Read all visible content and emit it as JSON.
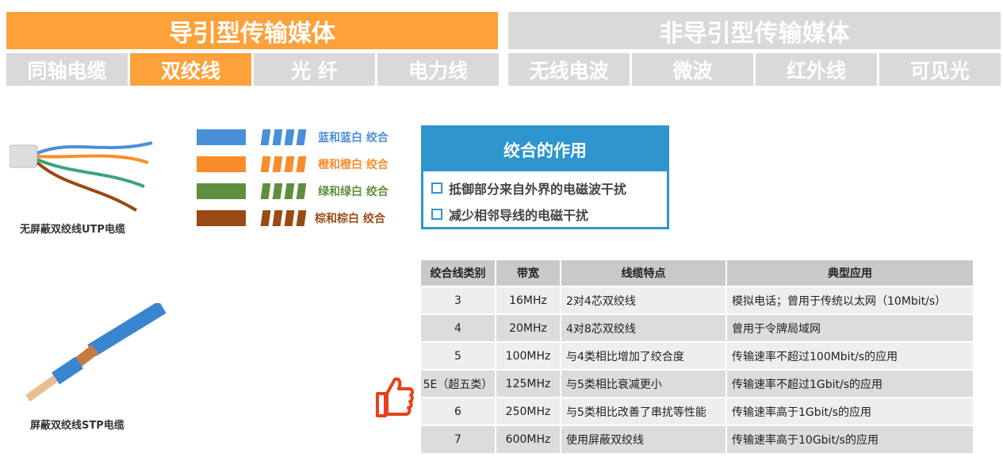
{
  "header": {
    "guided": {
      "title": "导引型传输媒体",
      "tabs": [
        "同轴电缆",
        "双绞线",
        "光 纤",
        "电力线"
      ],
      "active": 1
    },
    "unguided": {
      "title": "非导引型传输媒体",
      "tabs": [
        "无线电波",
        "微波",
        "红外线",
        "可见光"
      ]
    }
  },
  "colors": {
    "orange": "#fda13b",
    "gray": "#d9d9d9",
    "blue": "#2e95cf"
  },
  "pairs": [
    {
      "label": "蓝和蓝白 绞合",
      "color": "#4a90d9"
    },
    {
      "label": "橙和橙白 绞合",
      "color": "#fb8c2b"
    },
    {
      "label": "绿和绿白 绞合",
      "color": "#5f8f3e"
    },
    {
      "label": "棕和棕白 绞合",
      "color": "#9a4a12"
    }
  ],
  "utp_caption": "无屏蔽双绞线UTP电缆",
  "stp_caption": "屏蔽双绞线STP电缆",
  "box": {
    "title": "绞合的作用",
    "items": [
      "抵御部分来自外界的电磁波干扰",
      "减少相邻导线的电磁干扰"
    ]
  },
  "table": {
    "headers": [
      "绞合线类别",
      "带宽",
      "线缆特点",
      "典型应用"
    ],
    "rows": [
      [
        "3",
        "16MHz",
        "2对4芯双绞线",
        "模拟电话；曾用于传统以太网（10Mbit/s）"
      ],
      [
        "4",
        "20MHz",
        "4对8芯双绞线",
        "曾用于令牌局域网"
      ],
      [
        "5",
        "100MHz",
        "与4类相比增加了绞合度",
        "传输速率不超过100Mbit/s的应用"
      ],
      [
        "5E（超五类）",
        "125MHz",
        "与5类相比衰减更小",
        "传输速率不超过1Gbit/s的应用"
      ],
      [
        "6",
        "250MHz",
        "与5类相比改善了串扰等性能",
        "传输速率高于1Gbit/s的应用"
      ],
      [
        "7",
        "600MHz",
        "使用屏蔽双绞线",
        "传输速率高于10Gbit/s的应用"
      ]
    ]
  },
  "icons": {
    "thumb": "thumbs-up-icon"
  }
}
